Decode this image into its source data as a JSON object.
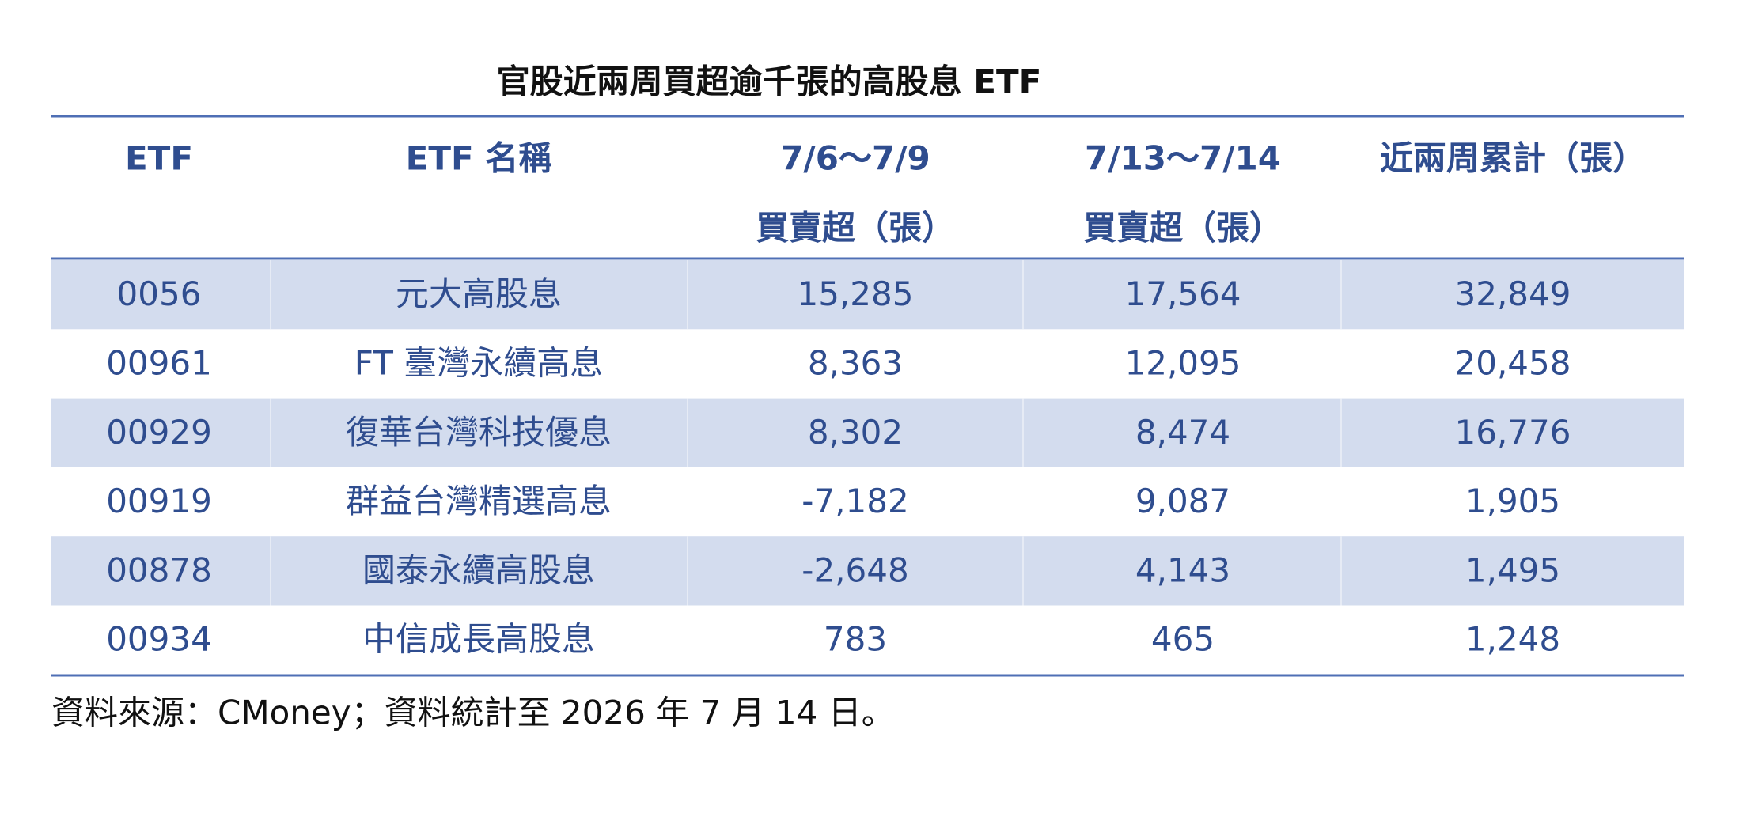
{
  "header": {
    "title": "官股近兩周買超逾千張的高股息 ETF"
  },
  "table": {
    "columns": [
      [
        "ETF"
      ],
      [
        "ETF 名稱"
      ],
      [
        "7/6～7/9",
        "買賣超（張）"
      ],
      [
        "7/13～7/14",
        "買賣超（張）"
      ],
      [
        "近兩周累計（張）"
      ]
    ],
    "rows": [
      [
        "0056",
        "元大高股息",
        "15,285",
        "17,564",
        "32,849"
      ],
      [
        "00961",
        "FT 臺灣永續高息",
        "8,363",
        "12,095",
        "20,458"
      ],
      [
        "00929",
        "復華台灣科技優息",
        "8,302",
        "8,474",
        "16,776"
      ],
      [
        "00919",
        "群益台灣精選高息",
        "-7,182",
        "9,087",
        "1,905"
      ],
      [
        "00878",
        "國泰永續高股息",
        "-2,648",
        "4,143",
        "1,495"
      ],
      [
        "00934",
        "中信成長高股息",
        "783",
        "465",
        "1,248"
      ]
    ]
  },
  "footer": {
    "note": "資料來源：CMoney；資料統計至 2026 年 7 月 14 日。"
  }
}
